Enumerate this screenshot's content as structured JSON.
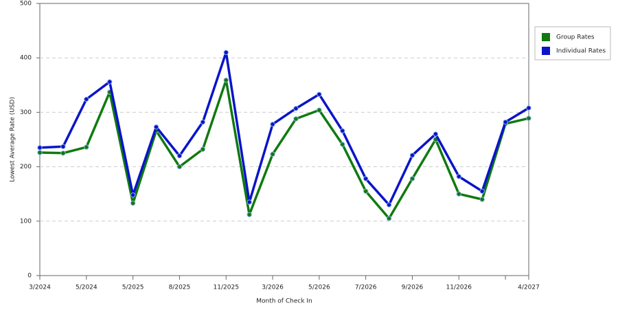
{
  "chart_data": {
    "type": "line",
    "x_label": "Month of Check In",
    "y_label": "Lowest Average Rate (USD)",
    "categories": [
      "3/2024",
      null,
      "5/2024",
      null,
      "5/2025",
      null,
      "8/2025",
      null,
      "11/2025",
      null,
      "3/2026",
      null,
      "5/2026",
      null,
      "7/2026",
      null,
      "9/2026",
      null,
      "11/2026",
      null,
      null,
      "4/2027"
    ],
    "series": [
      {
        "name": "Group Rates",
        "color": "#0f7a0f",
        "values": [
          226,
          225,
          236,
          337,
          133,
          266,
          200,
          232,
          359,
          112,
          223,
          288,
          304,
          241,
          155,
          105,
          178,
          250,
          150,
          140,
          279,
          289
        ]
      },
      {
        "name": "Individual Rates",
        "color": "#0a14c8",
        "values": [
          235,
          237,
          324,
          356,
          148,
          273,
          220,
          282,
          410,
          135,
          278,
          307,
          333,
          266,
          178,
          130,
          221,
          260,
          182,
          155,
          282,
          308
        ]
      }
    ],
    "ylim": [
      0,
      500
    ],
    "yticks": [
      0,
      100,
      200,
      300,
      400,
      500
    ],
    "grid": true,
    "legend": "right"
  }
}
